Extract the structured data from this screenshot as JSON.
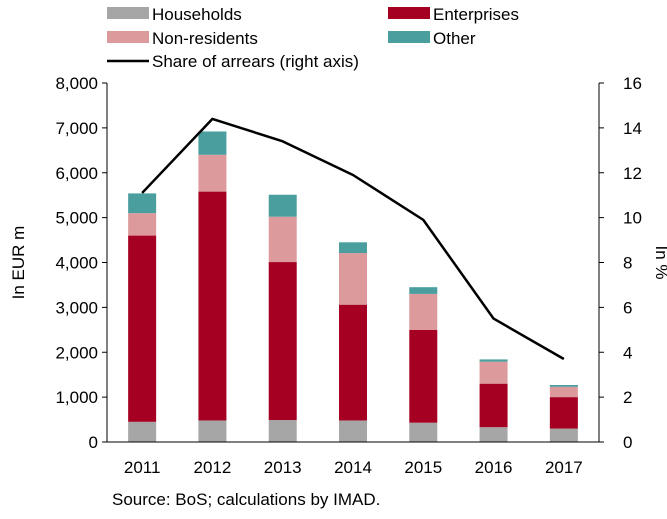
{
  "chart_data": {
    "type": "bar",
    "stacked": true,
    "categories": [
      "2011",
      "2012",
      "2013",
      "2014",
      "2015",
      "2016",
      "2017"
    ],
    "series": [
      {
        "name": "Households",
        "color": "#a6a6a6",
        "values": [
          450,
          480,
          490,
          480,
          430,
          330,
          300
        ]
      },
      {
        "name": "Enterprises",
        "color": "#a50021",
        "values": [
          4150,
          5100,
          3520,
          2580,
          2070,
          970,
          700
        ]
      },
      {
        "name": "Non-residents",
        "color": "#dc9a9c",
        "values": [
          500,
          820,
          1010,
          1150,
          800,
          490,
          230
        ]
      },
      {
        "name": "Other",
        "color": "#4a9e9e",
        "values": [
          440,
          520,
          490,
          240,
          150,
          50,
          40
        ]
      }
    ],
    "line_series": {
      "name": "Share of arrears (right axis)",
      "color": "#000000",
      "axis": "right",
      "values": [
        11.1,
        14.4,
        13.4,
        11.9,
        9.9,
        5.5,
        3.7
      ]
    },
    "ylabel": "In EUR m",
    "ylim": [
      0,
      8000
    ],
    "yticks": [
      "0",
      "1,000",
      "2,000",
      "3,000",
      "4,000",
      "5,000",
      "6,000",
      "7,000",
      "8,000"
    ],
    "y2label": "In %",
    "y2lim": [
      0,
      16
    ],
    "y2ticks": [
      "0",
      "2",
      "4",
      "6",
      "8",
      "10",
      "12",
      "14",
      "16"
    ],
    "legend_position": "top",
    "grid": false
  },
  "source_note": "Source: BoS; calculations by IMAD."
}
